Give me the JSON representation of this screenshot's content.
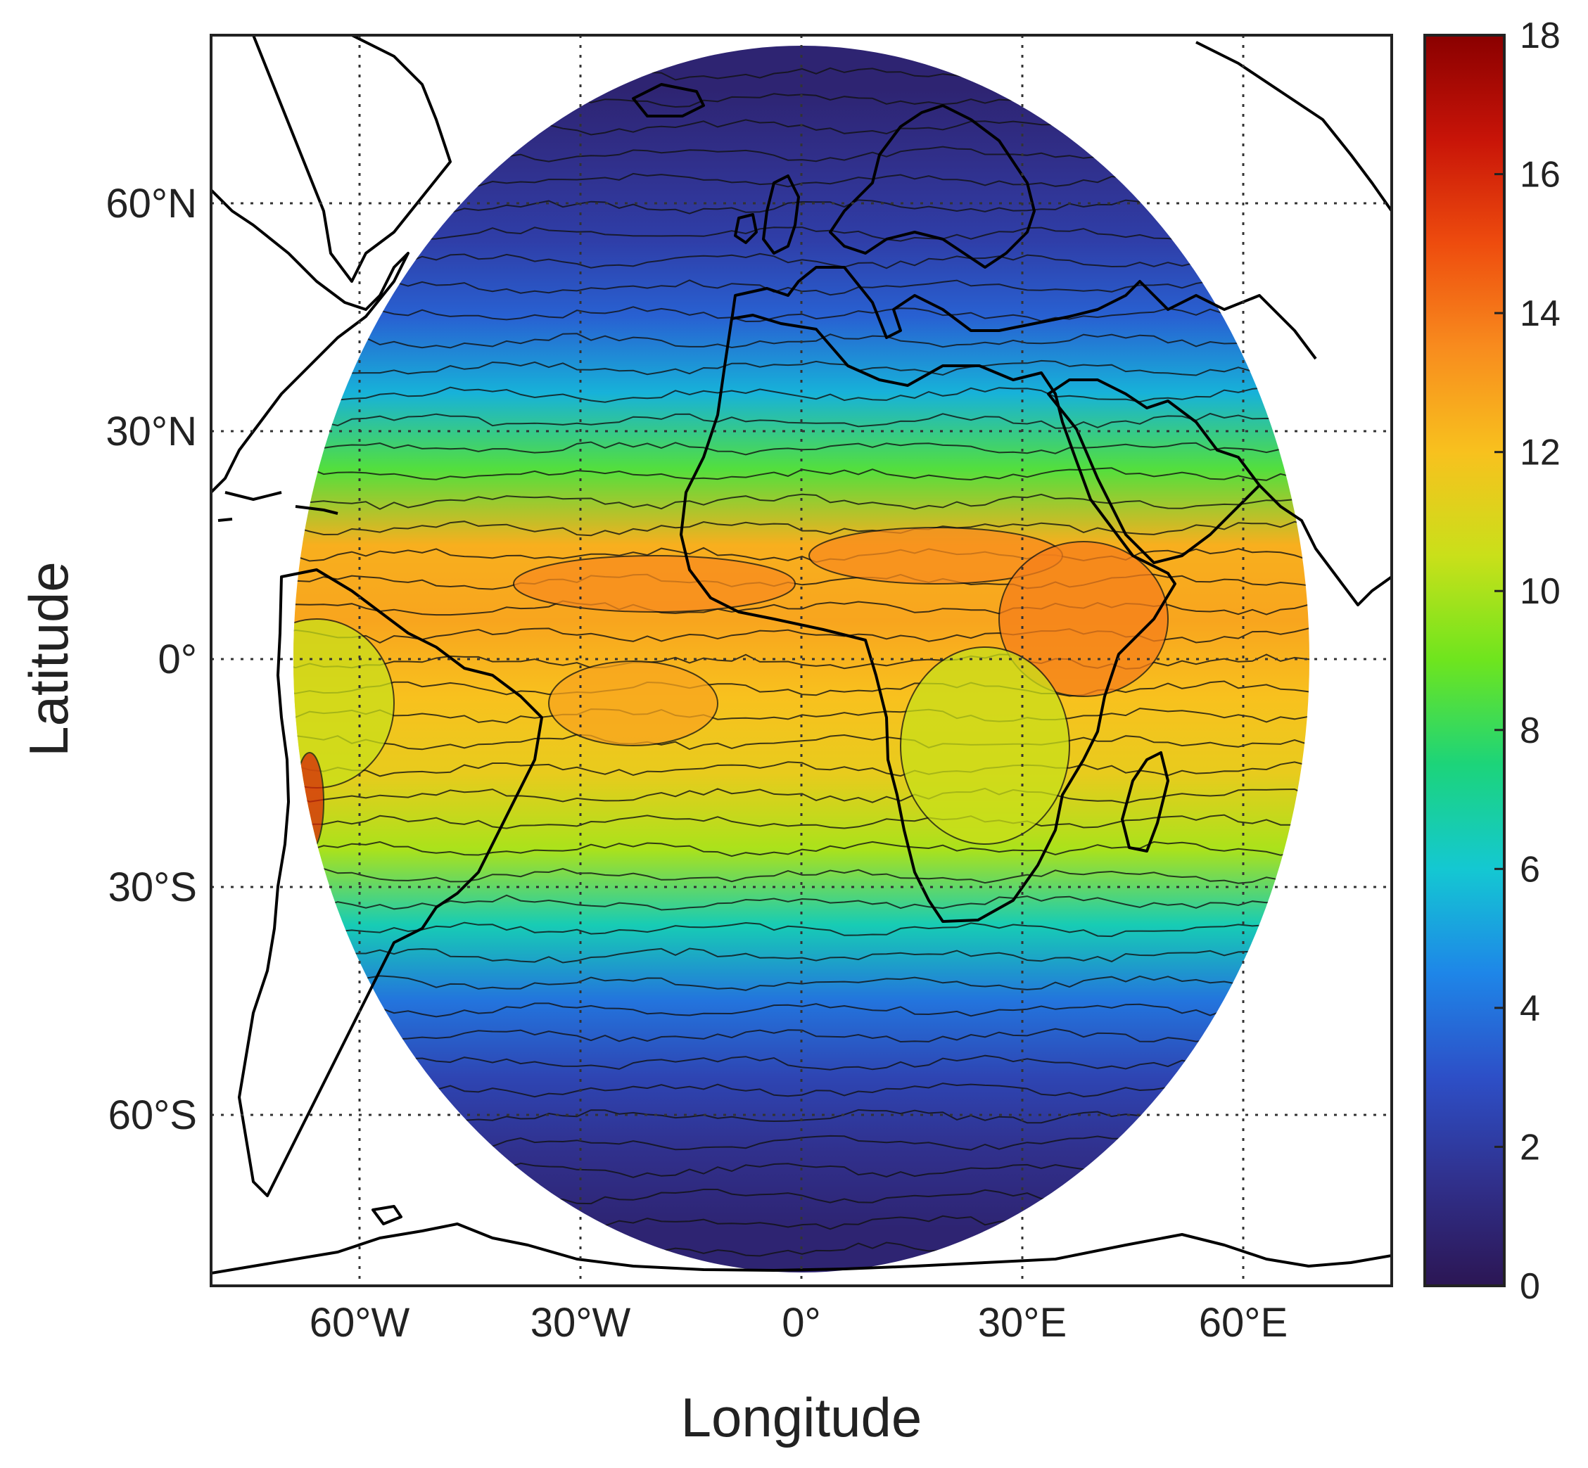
{
  "map": {
    "projection": "orthographic-disk (Meteosat full disk)",
    "xlabel": "Longitude",
    "ylabel": "Latitude",
    "grid": "dotted",
    "lon_ticks": [
      "60°W",
      "30°W",
      "0°",
      "30°E",
      "60°E"
    ],
    "lat_ticks": [
      "60°N",
      "30°N",
      "0°",
      "30°S",
      "60°S"
    ],
    "lon_tick_values": [
      -60,
      -30,
      0,
      30,
      60
    ],
    "lat_tick_values": [
      60,
      30,
      0,
      -30,
      -60
    ],
    "lon_range": [
      -80,
      80
    ],
    "lat_range": [
      -85,
      85
    ],
    "coastline_color": "#000000"
  },
  "colorbar": {
    "min": 0,
    "max": 18,
    "ticks": [
      "0",
      "2",
      "4",
      "6",
      "8",
      "10",
      "12",
      "14",
      "16",
      "18"
    ],
    "colormap": "jet-like (dark purple → blue → cyan → green → yellow → orange → dark red)",
    "stops": [
      "#2c1654",
      "#30308c",
      "#2d4fc7",
      "#1e86e8",
      "#14c8d2",
      "#1cd47a",
      "#6ee51e",
      "#c9e01a",
      "#f8c11e",
      "#f88c1e",
      "#ee4c0e",
      "#c81408",
      "#8a0000"
    ]
  },
  "chart_data": {
    "type": "heatmap",
    "title": "",
    "xlabel": "Longitude",
    "ylabel": "Latitude",
    "xlim": [
      -80,
      80
    ],
    "ylim": [
      -85,
      85
    ],
    "zlim": [
      0,
      18
    ],
    "description_of_field": "zonal bands: values ~0-1 near ±70° latitude rising to ~13-14 in the tropics",
    "zonal_profile": {
      "lat": [
        75,
        65,
        55,
        45,
        35,
        25,
        15,
        5,
        -5,
        -15,
        -25,
        -35,
        -45,
        -55,
        -65,
        -75
      ],
      "value": [
        0.8,
        1.5,
        2.2,
        3.5,
        5.5,
        8.5,
        12.5,
        12.8,
        12.0,
        11.5,
        10.0,
        6.5,
        4.0,
        2.5,
        1.5,
        0.8
      ]
    }
  }
}
